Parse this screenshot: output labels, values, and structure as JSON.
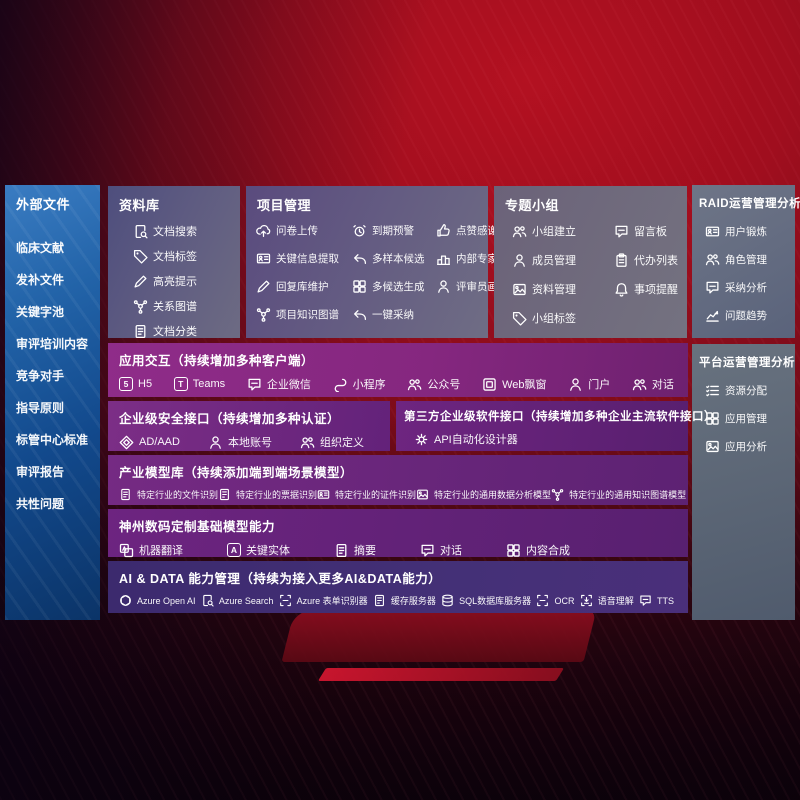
{
  "colors": {
    "background_red": "#a80f1f",
    "sidebar_blue": "#1b5496",
    "row_magenta": "#8f2c89",
    "row_purple": "#6e2580",
    "row_indigo": "#3f2a72",
    "panel_slate": "#66707f",
    "text": "#ffffff"
  },
  "left_sidebar": {
    "title": "外部文件",
    "items": [
      {
        "label": "临床文献"
      },
      {
        "label": "发补文件"
      },
      {
        "label": "关键字池"
      },
      {
        "label": "审评培训内容"
      },
      {
        "label": "竞争对手"
      },
      {
        "label": "指导原则"
      },
      {
        "label": "标管中心标准"
      },
      {
        "label": "审评报告"
      },
      {
        "label": "共性问题"
      }
    ]
  },
  "library_panel": {
    "title": "资料库",
    "items": [
      {
        "label": "文档搜索",
        "icon": "doc-search"
      },
      {
        "label": "文档标签",
        "icon": "doc-tag"
      },
      {
        "label": "高亮提示",
        "icon": "highlight"
      },
      {
        "label": "关系图谱",
        "icon": "relation-graph"
      },
      {
        "label": "文档分类",
        "icon": "doc-classify"
      }
    ]
  },
  "project_panel": {
    "title": "项目管理",
    "items": [
      {
        "label": "问卷上传",
        "icon": "questionnaire-upload"
      },
      {
        "label": "到期预警",
        "icon": "due-alarm"
      },
      {
        "label": "点赞感谢",
        "icon": "like"
      },
      {
        "label": "关键信息提取",
        "icon": "key-info-extract"
      },
      {
        "label": "多样本候选",
        "icon": "multi-sample"
      },
      {
        "label": "内部专家排名",
        "icon": "expert-rank"
      },
      {
        "label": "回复库维护",
        "icon": "reply-maintain"
      },
      {
        "label": "多候选生成",
        "icon": "multi-candidate"
      },
      {
        "label": "评审员画像",
        "icon": "reviewer-profile"
      },
      {
        "label": "项目知识图谱",
        "icon": "project-graph"
      },
      {
        "label": "一键采纳",
        "icon": "one-click-adopt"
      }
    ]
  },
  "group_panel": {
    "title": "专题小组",
    "items": [
      {
        "label": "小组建立",
        "icon": "group-create"
      },
      {
        "label": "留言板",
        "icon": "message-board"
      },
      {
        "label": "成员管理",
        "icon": "member-manage"
      },
      {
        "label": "代办列表",
        "icon": "todo-list"
      },
      {
        "label": "资料管理",
        "icon": "material-manage"
      },
      {
        "label": "事项提醒",
        "icon": "reminder"
      },
      {
        "label": "小组标签",
        "icon": "group-tag"
      }
    ]
  },
  "raid_panel": {
    "title": "RAID运营管理分析",
    "items": [
      {
        "label": "用户锻炼",
        "icon": "user-card"
      },
      {
        "label": "角色管理",
        "icon": "role-manage"
      },
      {
        "label": "采纳分析",
        "icon": "adopt-analysis"
      },
      {
        "label": "问题趋势",
        "icon": "issue-trend"
      }
    ]
  },
  "platform_panel": {
    "title": "平台运营管理分析",
    "items": [
      {
        "label": "资源分配",
        "icon": "resource-alloc"
      },
      {
        "label": "应用管理",
        "icon": "app-manage"
      },
      {
        "label": "应用分析",
        "icon": "app-analysis"
      }
    ]
  },
  "app_row": {
    "title": "应用交互（持续增加多种客户端）",
    "items": [
      {
        "label": "H5",
        "icon": "h5"
      },
      {
        "label": "Teams",
        "icon": "teams"
      },
      {
        "label": "企业微信",
        "icon": "wecom"
      },
      {
        "label": "小程序",
        "icon": "miniprogram"
      },
      {
        "label": "公众号",
        "icon": "official-account"
      },
      {
        "label": "Web飘窗",
        "icon": "web-popup"
      },
      {
        "label": "门户",
        "icon": "portal"
      },
      {
        "label": "对话",
        "icon": "dialog"
      }
    ]
  },
  "security_row": {
    "title": "企业级安全接口（持续增加多种认证）",
    "items": [
      {
        "label": "AD/AAD",
        "icon": "ad-aad"
      },
      {
        "label": "本地账号",
        "icon": "local-account"
      },
      {
        "label": "组织定义",
        "icon": "org-define"
      }
    ]
  },
  "thirdparty_row": {
    "title": "第三方企业级软件接口（持续增加多种企业主流软件接口）",
    "items": [
      {
        "label": "API自动化设计器",
        "icon": "api-designer"
      }
    ]
  },
  "model_row": {
    "title": "产业模型库（持续添加端到端场景模型）",
    "items": [
      {
        "label": "特定行业的文件识别",
        "icon": "file-recog"
      },
      {
        "label": "特定行业的票据识别",
        "icon": "invoice-recog"
      },
      {
        "label": "特定行业的证件识别",
        "icon": "cert-recog"
      },
      {
        "label": "特定行业的通用数据分析模型",
        "icon": "data-model"
      },
      {
        "label": "特定行业的通用知识图谱模型",
        "icon": "graph-model"
      }
    ]
  },
  "base_row": {
    "title": "神州数码定制基础模型能力",
    "items": [
      {
        "label": "机器翻译",
        "icon": "translate"
      },
      {
        "label": "关键实体",
        "icon": "key-entity"
      },
      {
        "label": "摘要",
        "icon": "summary"
      },
      {
        "label": "对话",
        "icon": "chat"
      },
      {
        "label": "内容合成",
        "icon": "content-compose"
      }
    ]
  },
  "ai_row": {
    "title": "AI & DATA 能力管理（持续为接入更多AI&DATA能力）",
    "items": [
      {
        "label": "Azure Open AI",
        "icon": "openai"
      },
      {
        "label": "Azure Search",
        "icon": "azure-search"
      },
      {
        "label": "Azure 表单识别器",
        "icon": "form-recognizer"
      },
      {
        "label": "缓存服务器",
        "icon": "cache-server"
      },
      {
        "label": "SQL数据库服务器",
        "icon": "sql-db"
      },
      {
        "label": "OCR",
        "icon": "ocr"
      },
      {
        "label": "语音理解",
        "icon": "speech"
      },
      {
        "label": "TTS",
        "icon": "tts"
      }
    ]
  }
}
